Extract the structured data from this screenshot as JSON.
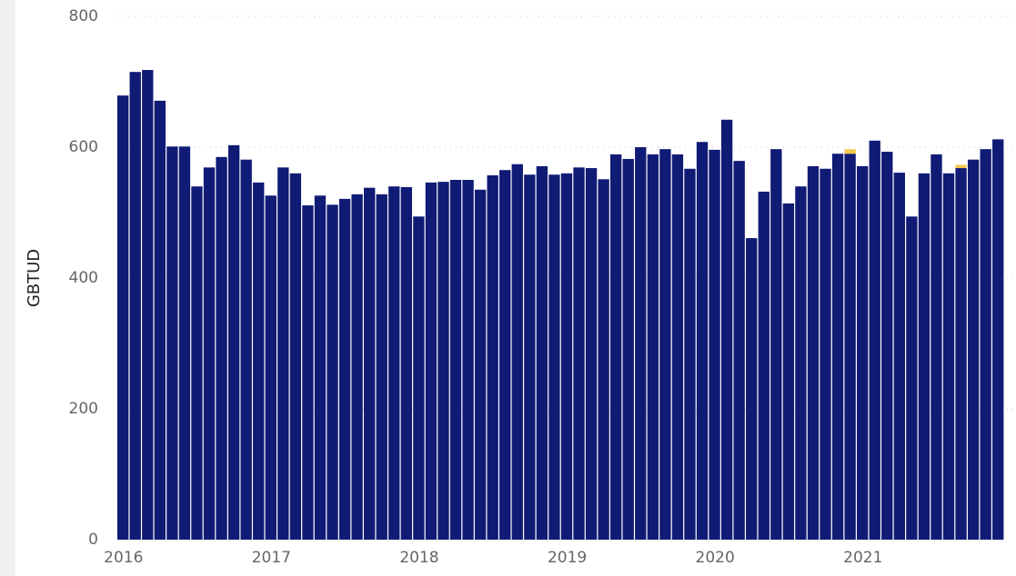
{
  "chart_data": {
    "type": "stacked-bar",
    "ylabel": "GBTUD",
    "categories": [
      "2016",
      null,
      null,
      null,
      null,
      null,
      null,
      null,
      null,
      null,
      null,
      null,
      "2017",
      null,
      null,
      null,
      null,
      null,
      null,
      null,
      null,
      null,
      null,
      null,
      "2018",
      null,
      null,
      null,
      null,
      null,
      null,
      null,
      null,
      null,
      null,
      null,
      "2019",
      null,
      null,
      null,
      null,
      null,
      null,
      null,
      null,
      null,
      null,
      null,
      "2020",
      null,
      null,
      null,
      null,
      null,
      null,
      null,
      null,
      null,
      null,
      null,
      "2021",
      null,
      null,
      null,
      null,
      null,
      null,
      null,
      null,
      null,
      null,
      null
    ],
    "series": [
      {
        "color": "#101b75",
        "values": [
          679,
          715,
          718,
          671,
          601,
          601,
          540,
          569,
          585,
          603,
          581,
          546,
          526,
          569,
          560,
          511,
          526,
          512,
          521,
          528,
          538,
          528,
          540,
          539,
          494,
          546,
          547,
          550,
          550,
          535,
          557,
          565,
          574,
          558,
          571,
          558,
          560,
          569,
          568,
          551,
          589,
          582,
          600,
          589,
          597,
          589,
          567,
          608,
          596,
          642,
          579,
          461,
          532,
          597,
          514,
          540,
          571,
          567,
          590,
          590,
          571,
          610,
          593,
          561,
          494,
          560,
          589,
          560,
          568,
          581,
          597,
          612
        ]
      },
      {
        "color": "#f2c94c",
        "values": [
          0,
          0,
          0,
          0,
          0,
          0,
          0,
          0,
          0,
          0,
          0,
          0,
          0,
          0,
          0,
          0,
          0,
          0,
          0,
          0,
          0,
          0,
          0,
          0,
          0,
          0,
          0,
          0,
          0,
          0,
          0,
          0,
          0,
          0,
          0,
          0,
          0,
          0,
          0,
          0,
          0,
          0,
          0,
          0,
          0,
          0,
          0,
          0,
          0,
          0,
          0,
          0,
          0,
          0,
          0,
          0,
          0,
          0,
          0,
          7,
          0,
          0,
          0,
          0,
          0,
          0,
          0,
          0,
          5,
          0,
          0,
          0
        ]
      }
    ],
    "ylim": [
      0,
      800
    ],
    "yticks": [
      0,
      200,
      400,
      600,
      800
    ],
    "grid": true
  }
}
